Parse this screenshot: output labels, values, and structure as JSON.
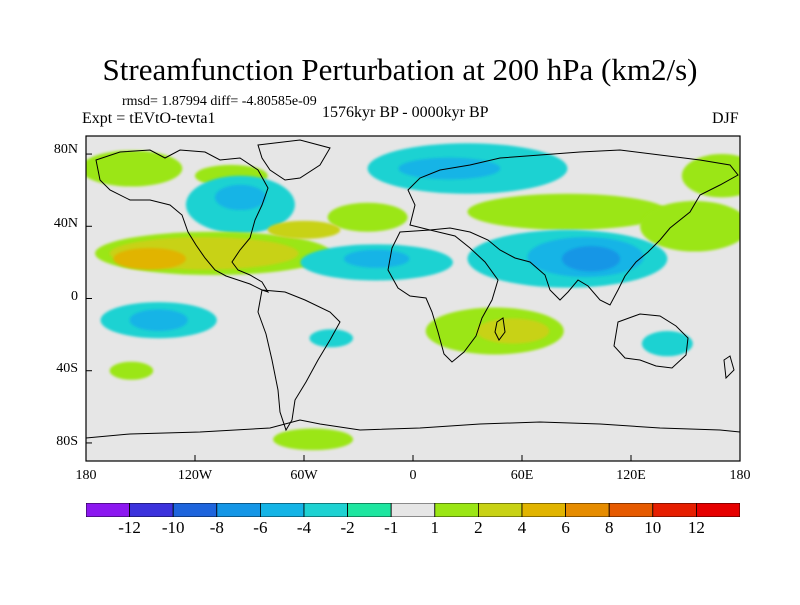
{
  "title": "Streamfunction Perturbation at 200 hPa (km2/s)",
  "stats": "rmsd= 1.87994 diff= -4.80585e-09",
  "experiment": "Expt = tEVtO-tevta1",
  "period": "1576kyr BP - 0000kyr BP",
  "season": "DJF",
  "lat_labels": [
    "80N",
    "40N",
    "0",
    "40S",
    "80S"
  ],
  "lon_labels": [
    "180",
    "120W",
    "60W",
    "0",
    "60E",
    "120E",
    "180"
  ],
  "colorbar": {
    "labels": [
      "-12",
      "-10",
      "-8",
      "-6",
      "-4",
      "-2",
      "-1",
      "1",
      "2",
      "4",
      "6",
      "8",
      "10",
      "12"
    ],
    "colors": [
      "#8c17f0",
      "#3c32dc",
      "#1e64dc",
      "#1496e6",
      "#14b4e6",
      "#1ed2d2",
      "#1ee6a0",
      "#e6e6e6",
      "#9be614",
      "#c8d214",
      "#e1b400",
      "#e68c00",
      "#e65a00",
      "#e61e00",
      "#e60000"
    ]
  },
  "map_data": {
    "type": "contour-fill-map",
    "projection": "cylindrical-equidistant",
    "lon_range": [
      -180,
      180
    ],
    "lat_range": [
      -90,
      90
    ],
    "regions": [
      {
        "lon": -155,
        "lat": 72,
        "rx": 28,
        "ry": 10,
        "level": 2
      },
      {
        "lon": -100,
        "lat": 68,
        "rx": 20,
        "ry": 6,
        "level": 2
      },
      {
        "lon": -95,
        "lat": 52,
        "rx": 30,
        "ry": 16,
        "level": -2
      },
      {
        "lon": -95,
        "lat": 56,
        "rx": 14,
        "ry": 7,
        "level": -4
      },
      {
        "lon": -110,
        "lat": 25,
        "rx": 65,
        "ry": 12,
        "level": 2
      },
      {
        "lon": -115,
        "lat": 25,
        "rx": 52,
        "ry": 9,
        "level": 4
      },
      {
        "lon": -145,
        "lat": 22,
        "rx": 20,
        "ry": 6,
        "level": 6
      },
      {
        "lon": -25,
        "lat": 45,
        "rx": 22,
        "ry": 8,
        "level": 2
      },
      {
        "lon": -60,
        "lat": 38,
        "rx": 20,
        "ry": 5,
        "level": 4
      },
      {
        "lon": -20,
        "lat": 20,
        "rx": 42,
        "ry": 10,
        "level": -2
      },
      {
        "lon": -20,
        "lat": 22,
        "rx": 18,
        "ry": 5,
        "level": -4
      },
      {
        "lon": 30,
        "lat": 72,
        "rx": 55,
        "ry": 14,
        "level": -2
      },
      {
        "lon": 20,
        "lat": 72,
        "rx": 28,
        "ry": 6,
        "level": -4
      },
      {
        "lon": 85,
        "lat": 48,
        "rx": 55,
        "ry": 10,
        "level": 2
      },
      {
        "lon": 155,
        "lat": 40,
        "rx": 30,
        "ry": 14,
        "level": 2
      },
      {
        "lon": 170,
        "lat": 68,
        "rx": 22,
        "ry": 12,
        "level": 2
      },
      {
        "lon": 85,
        "lat": 22,
        "rx": 55,
        "ry": 16,
        "level": -2
      },
      {
        "lon": 95,
        "lat": 23,
        "rx": 32,
        "ry": 11,
        "level": -4
      },
      {
        "lon": 98,
        "lat": 22,
        "rx": 16,
        "ry": 7,
        "level": -6
      },
      {
        "lon": 45,
        "lat": -18,
        "rx": 38,
        "ry": 13,
        "level": 2
      },
      {
        "lon": 55,
        "lat": -18,
        "rx": 20,
        "ry": 7,
        "level": 4
      },
      {
        "lon": -140,
        "lat": -12,
        "rx": 32,
        "ry": 10,
        "level": -2
      },
      {
        "lon": -140,
        "lat": -12,
        "rx": 16,
        "ry": 6,
        "level": -4
      },
      {
        "lon": -155,
        "lat": -40,
        "rx": 12,
        "ry": 5,
        "level": 2
      },
      {
        "lon": -45,
        "lat": -22,
        "rx": 12,
        "ry": 5,
        "level": -2
      },
      {
        "lon": -55,
        "lat": -78,
        "rx": 22,
        "ry": 6,
        "level": 2
      },
      {
        "lon": 140,
        "lat": -25,
        "rx": 14,
        "ry": 7,
        "level": -2
      }
    ]
  }
}
